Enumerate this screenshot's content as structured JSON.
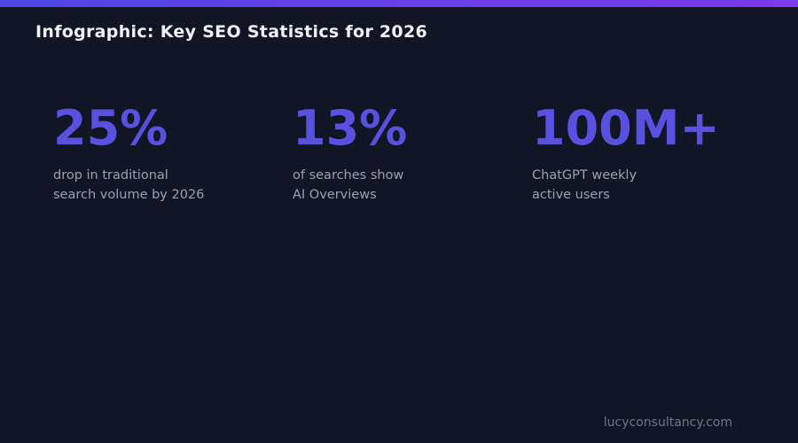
{
  "header": {
    "title": "Infographic: Key SEO Statistics for 2026"
  },
  "stats": [
    {
      "value": "25%",
      "caption_line1": "drop in traditional",
      "caption_line2": "search volume by 2026"
    },
    {
      "value": "13%",
      "caption_line1": "of searches show",
      "caption_line2": "AI Overviews"
    },
    {
      "value": "100M+",
      "caption_line1": "ChatGPT weekly",
      "caption_line2": "active users"
    }
  ],
  "footer": {
    "website": "lucyconsultancy.com"
  },
  "colors": {
    "background": "#101624",
    "gradient_start": "#4f46e5",
    "gradient_end": "#7c3aed",
    "title": "#eef1f6",
    "stat_value": "#5a50e0",
    "caption": "#99a1b0",
    "footer": "#6b7689"
  },
  "chart_data": {
    "type": "table",
    "title": "Infographic: Key SEO Statistics for 2026",
    "categories": [
      "drop in traditional search volume by 2026",
      "of searches show AI Overviews",
      "ChatGPT weekly active users"
    ],
    "values": [
      "25%",
      "13%",
      "100M+"
    ],
    "grid": false,
    "legend_position": "none"
  }
}
